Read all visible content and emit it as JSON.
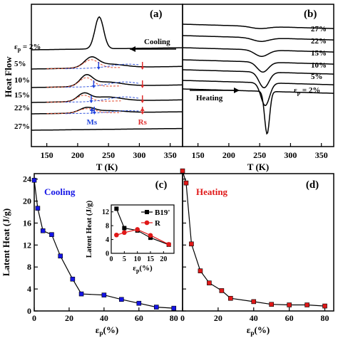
{
  "chart_data": [
    {
      "panel": "(a)",
      "type": "line",
      "xlabel": "T (K)",
      "ylabel": "Heat Flow",
      "xlim": [
        125,
        370
      ],
      "xticks": [
        150,
        200,
        250,
        300,
        350
      ],
      "mode_label": "Cooling",
      "strain_prefix": "ε",
      "strain_sub": "p",
      "strain_value": " = 2%",
      "curve_labels": [
        "5%",
        "10%",
        "15%",
        "22%",
        "27%"
      ],
      "ms_label": "Ms",
      "rs_label": "Rs"
    },
    {
      "panel": "(b)",
      "type": "line",
      "xlabel": "T (K)",
      "xlim": [
        125,
        370
      ],
      "xticks": [
        150,
        200,
        250,
        300,
        350
      ],
      "mode_label": "Heating",
      "strain_prefix": "ε",
      "strain_sub": "p",
      "strain_value": " = 2%",
      "curve_labels": [
        "27%",
        "22%",
        "15%",
        "10%",
        "5%"
      ]
    },
    {
      "panel": "(c)",
      "type": "line",
      "xlabel": "ε",
      "xlabel_sub": "p",
      "xlabel_unit": "(%)",
      "ylabel": "Latent Heat (J/g)",
      "xlim": [
        0,
        85
      ],
      "ylim": [
        0,
        25
      ],
      "xticks": [
        0,
        20,
        40,
        60,
        80
      ],
      "yticks": [
        0,
        4,
        8,
        12,
        16,
        20,
        24
      ],
      "mode_label": "Cooling",
      "series": [
        {
          "x": [
            0,
            2,
            5,
            10,
            15,
            22,
            27,
            40,
            50,
            60,
            70,
            80
          ],
          "values": [
            23.8,
            18.7,
            14.6,
            13.9,
            10.0,
            5.8,
            3.1,
            2.9,
            2.1,
            1.4,
            0.7,
            0.5
          ]
        }
      ],
      "inset": {
        "xlabel": "ε",
        "xlabel_sub": "p",
        "xlabel_unit": "(%)",
        "ylabel": "Latent Heat (J/g)",
        "xlim": [
          0,
          24
        ],
        "ylim": [
          0,
          14
        ],
        "xticks": [
          0,
          5,
          10,
          15,
          20
        ],
        "yticks": [
          0,
          4,
          8,
          12
        ],
        "series": [
          {
            "name": "B19'",
            "x": [
              2,
              5,
              10,
              15,
              22
            ],
            "values": [
              12.9,
              7.3,
              6.6,
              4.5,
              2.5
            ]
          },
          {
            "name": "R",
            "x": [
              2,
              5,
              10,
              15,
              22
            ],
            "values": [
              5.3,
              6.0,
              6.9,
              5.2,
              2.6
            ]
          }
        ]
      }
    },
    {
      "panel": "(d)",
      "type": "line",
      "xlabel": "ε",
      "xlabel_sub": "p",
      "xlabel_unit": "(%)",
      "xlim": [
        0,
        85
      ],
      "ylim": [
        0,
        25
      ],
      "xticks": [
        0,
        20,
        40,
        60,
        80
      ],
      "mode_label": "Heating",
      "series": [
        {
          "x": [
            0,
            2,
            5,
            10,
            15,
            22,
            27,
            40,
            50,
            60,
            70,
            80
          ],
          "values": [
            25.5,
            23.3,
            12.2,
            7.3,
            5.1,
            3.7,
            2.3,
            1.7,
            1.2,
            1.1,
            1.1,
            0.9
          ]
        }
      ]
    }
  ],
  "colors": {
    "black": "#000000",
    "cooling_blue": "#1515e6",
    "heating_red": "#e01818",
    "ms_blue": "#2244dd",
    "rs_red": "#e03030",
    "fit_red": "#e34a2e",
    "fit_blue": "#3355dd"
  }
}
